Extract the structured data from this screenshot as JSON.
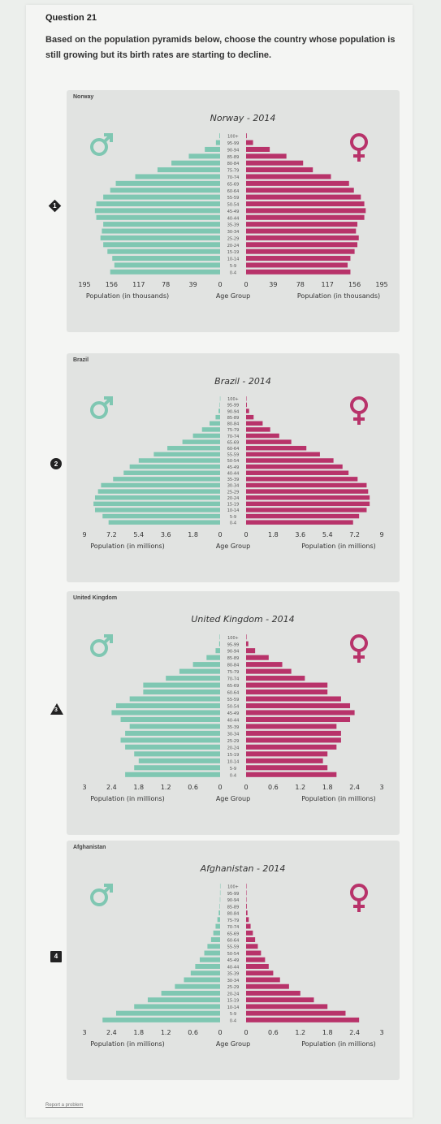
{
  "question": {
    "title": "Question 21",
    "text": "Based on the population pyramids below, choose the country whose population is still growing but its birth rates are starting to decline."
  },
  "footer": {
    "report_link": "Report a problem"
  },
  "colors": {
    "male": "#7fc7b2",
    "female": "#b8336a",
    "card": "#e1e3e1"
  },
  "icons": {
    "male": "mars-icon",
    "female": "venus-icon"
  },
  "age_groups": [
    "0-4",
    "5-9",
    "10-14",
    "15-19",
    "20-24",
    "25-29",
    "30-34",
    "35-39",
    "40-44",
    "45-49",
    "50-54",
    "55-59",
    "60-64",
    "65-69",
    "70-74",
    "75-79",
    "80-84",
    "85-89",
    "90-94",
    "95-99",
    "100+"
  ],
  "chart_data": [
    {
      "type": "bar",
      "orientation": "population-pyramid",
      "country_label": "Norway",
      "option": "1",
      "marker": "diamond",
      "title": "Norway - 2014",
      "x_ticks": [
        "195",
        "156",
        "117",
        "78",
        "39",
        "0"
      ],
      "x_tick_values": [
        195,
        156,
        117,
        78,
        39,
        0
      ],
      "xmax": 195,
      "xlabel_left": "Population (in thousands)",
      "xlabel_center": "Age Group",
      "xlabel_right": "Population (in thousands)",
      "series": [
        {
          "name": "male",
          "values": [
            158,
            152,
            155,
            162,
            168,
            172,
            170,
            168,
            178,
            180,
            178,
            168,
            158,
            150,
            122,
            90,
            70,
            45,
            22,
            6,
            1
          ]
        },
        {
          "name": "female",
          "values": [
            150,
            146,
            150,
            156,
            160,
            162,
            158,
            160,
            170,
            172,
            170,
            165,
            155,
            148,
            122,
            96,
            82,
            58,
            34,
            10,
            1
          ]
        }
      ]
    },
    {
      "type": "bar",
      "orientation": "population-pyramid",
      "country_label": "Brazil",
      "option": "2",
      "marker": "circle",
      "title": "Brazil - 2014",
      "x_ticks": [
        "9",
        "7.2",
        "5.4",
        "3.6",
        "1.8",
        "0"
      ],
      "x_tick_values": [
        9,
        7.2,
        5.4,
        3.6,
        1.8,
        0
      ],
      "xmax": 9,
      "xlabel_left": "Population (in millions)",
      "xlabel_center": "Age Group",
      "xlabel_right": "Population (in millions)",
      "series": [
        {
          "name": "male",
          "values": [
            7.4,
            7.8,
            8.3,
            8.4,
            8.3,
            8.1,
            7.9,
            7.1,
            6.4,
            6.0,
            5.4,
            4.4,
            3.5,
            2.5,
            1.8,
            1.2,
            0.7,
            0.3,
            0.1,
            0.03,
            0.01
          ]
        },
        {
          "name": "female",
          "values": [
            7.1,
            7.5,
            8.0,
            8.2,
            8.2,
            8.1,
            8.0,
            7.4,
            6.8,
            6.4,
            5.8,
            4.9,
            4.0,
            3.0,
            2.2,
            1.6,
            1.1,
            0.5,
            0.2,
            0.05,
            0.01
          ]
        }
      ]
    },
    {
      "type": "bar",
      "orientation": "population-pyramid",
      "country_label": "United Kingdom",
      "option": "3",
      "marker": "triangle",
      "title": "United Kingdom - 2014",
      "x_ticks": [
        "3",
        "2.4",
        "1.8",
        "1.2",
        "0.6",
        "0"
      ],
      "x_tick_values": [
        3,
        2.4,
        1.8,
        1.2,
        0.6,
        0
      ],
      "xmax": 3,
      "xlabel_left": "Population (in millions)",
      "xlabel_center": "Age Group",
      "xlabel_right": "Population (in millions)",
      "series": [
        {
          "name": "male",
          "values": [
            2.1,
            1.9,
            1.8,
            1.9,
            2.1,
            2.2,
            2.1,
            2.0,
            2.2,
            2.4,
            2.3,
            2.0,
            1.7,
            1.7,
            1.2,
            0.9,
            0.6,
            0.3,
            0.1,
            0.02,
            0.01
          ]
        },
        {
          "name": "female",
          "values": [
            2.0,
            1.8,
            1.7,
            1.8,
            2.0,
            2.1,
            2.1,
            2.0,
            2.3,
            2.4,
            2.3,
            2.1,
            1.8,
            1.8,
            1.3,
            1.0,
            0.8,
            0.5,
            0.2,
            0.05,
            0.01
          ]
        }
      ]
    },
    {
      "type": "bar",
      "orientation": "population-pyramid",
      "country_label": "Afghanistan",
      "option": "4",
      "marker": "square",
      "title": "Afghanistan - 2014",
      "x_ticks": [
        "3",
        "2.4",
        "1.8",
        "1.2",
        "0.6",
        "0"
      ],
      "x_tick_values": [
        3,
        2.4,
        1.8,
        1.2,
        0.6,
        0
      ],
      "xmax": 3,
      "xlabel_left": "Population (in millions)",
      "xlabel_center": "Age Group",
      "xlabel_right": "Population (in millions)",
      "series": [
        {
          "name": "male",
          "values": [
            2.6,
            2.3,
            1.9,
            1.6,
            1.3,
            1.0,
            0.8,
            0.65,
            0.55,
            0.45,
            0.35,
            0.28,
            0.2,
            0.15,
            0.1,
            0.06,
            0.03,
            0.01,
            0.005,
            0.002,
            0.001
          ]
        },
        {
          "name": "female",
          "values": [
            2.5,
            2.2,
            1.8,
            1.5,
            1.2,
            0.95,
            0.75,
            0.6,
            0.5,
            0.42,
            0.33,
            0.26,
            0.2,
            0.15,
            0.1,
            0.06,
            0.03,
            0.015,
            0.005,
            0.002,
            0.001
          ]
        }
      ]
    }
  ]
}
